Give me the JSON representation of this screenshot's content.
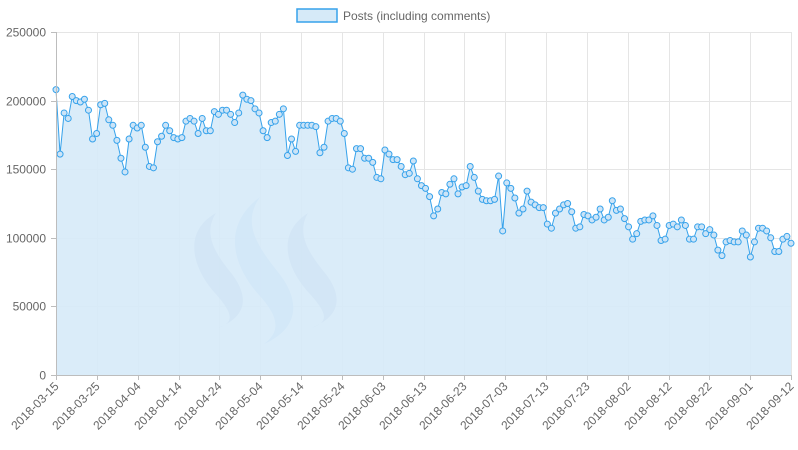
{
  "chart_data": {
    "type": "area",
    "title": "",
    "xlabel": "",
    "ylabel": "",
    "ylim": [
      0,
      250000
    ],
    "grid": true,
    "legend_position": "top-center",
    "colors": {
      "line": "#36a2eb",
      "fill": "#d6eaf8",
      "point_fill": "#cce4f7",
      "logo_dark": "#9eadd0",
      "logo_light": "#a9c9f5"
    },
    "y_ticks": [
      0,
      50000,
      100000,
      150000,
      200000,
      250000
    ],
    "y_tick_labels": [
      "0",
      "50000",
      "100000",
      "150000",
      "200000",
      "250000"
    ],
    "x_tick_labels": [
      "2018-03-15",
      "2018-03-25",
      "2018-04-04",
      "2018-04-14",
      "2018-04-24",
      "2018-05-04",
      "2018-05-14",
      "2018-05-24",
      "2018-06-03",
      "2018-06-13",
      "2018-06-23",
      "2018-07-03",
      "2018-07-13",
      "2018-07-23",
      "2018-08-02",
      "2018-08-12",
      "2018-08-22",
      "2018-09-01",
      "2018-09-12"
    ],
    "x_start": "2018-03-15",
    "x_end": "2018-09-12",
    "logo": "steem-logo",
    "series": [
      {
        "name": "Posts (including comments)",
        "values": [
          208000,
          161000,
          191000,
          187000,
          203000,
          200000,
          199000,
          201000,
          193000,
          172000,
          176000,
          197000,
          198000,
          186000,
          182000,
          171000,
          158000,
          148000,
          172000,
          182000,
          180000,
          182000,
          166000,
          152000,
          151000,
          170000,
          174000,
          182000,
          178000,
          173000,
          172000,
          173000,
          185000,
          187000,
          185000,
          176000,
          187000,
          178000,
          178000,
          192000,
          190000,
          193000,
          193000,
          190000,
          184000,
          191000,
          204000,
          201000,
          200000,
          194000,
          191000,
          178000,
          173000,
          184000,
          185000,
          190000,
          194000,
          160000,
          172000,
          163000,
          182000,
          182000,
          182000,
          182000,
          181000,
          162000,
          166000,
          185000,
          187000,
          187000,
          185000,
          176000,
          151000,
          150000,
          165000,
          165000,
          158000,
          158000,
          155000,
          144000,
          143000,
          164000,
          161000,
          157000,
          157000,
          152000,
          146000,
          147000,
          156000,
          143000,
          138000,
          136000,
          130000,
          116000,
          121000,
          133000,
          132000,
          139000,
          143000,
          132000,
          137000,
          138000,
          152000,
          144000,
          134000,
          128000,
          127000,
          127000,
          128000,
          145000,
          105000,
          140000,
          136000,
          129000,
          118000,
          121000,
          134000,
          126000,
          124000,
          122000,
          122000,
          110000,
          107000,
          118000,
          121000,
          124000,
          125000,
          119000,
          107000,
          108000,
          117000,
          116000,
          113000,
          115000,
          121000,
          113000,
          115000,
          127000,
          120000,
          121000,
          114000,
          108000,
          99000,
          103000,
          112000,
          113000,
          113000,
          116000,
          109000,
          98000,
          99000,
          109000,
          110000,
          108000,
          113000,
          109000,
          99000,
          99000,
          108000,
          108000,
          103000,
          106000,
          102000,
          91000,
          87000,
          97000,
          98000,
          97000,
          97000,
          105000,
          102000,
          86000,
          97000,
          107000,
          107000,
          105000,
          100000,
          90000,
          90000,
          99000,
          101000,
          96000
        ]
      }
    ]
  }
}
